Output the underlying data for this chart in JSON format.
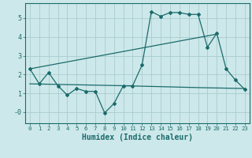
{
  "xlabel": "Humidex (Indice chaleur)",
  "bg_color": "#cde8ea",
  "line_color": "#1a6b6b",
  "grid_color": "#a8ccce",
  "xlim": [
    -0.5,
    23.5
  ],
  "ylim": [
    -0.6,
    5.8
  ],
  "xticks": [
    0,
    1,
    2,
    3,
    4,
    5,
    6,
    7,
    8,
    9,
    10,
    11,
    12,
    13,
    14,
    15,
    16,
    17,
    18,
    19,
    20,
    21,
    22,
    23
  ],
  "yticks": [
    0,
    1,
    2,
    3,
    4,
    5
  ],
  "ytick_labels": [
    "-0",
    "1",
    "2",
    "3",
    "4",
    "5"
  ],
  "line1_x": [
    0,
    1,
    2,
    3,
    4,
    5,
    6,
    7,
    8,
    9,
    10,
    11,
    12,
    13,
    14,
    15,
    16,
    17,
    18,
    19,
    20,
    21,
    22,
    23
  ],
  "line1_y": [
    2.3,
    1.5,
    2.1,
    1.4,
    0.9,
    1.25,
    1.1,
    1.1,
    -0.05,
    0.45,
    1.4,
    1.4,
    2.5,
    5.35,
    5.1,
    5.3,
    5.3,
    5.2,
    5.2,
    3.45,
    4.2,
    2.3,
    1.7,
    1.2
  ],
  "line2_x": [
    0,
    10,
    14,
    18,
    23
  ],
  "line2_y": [
    1.5,
    1.4,
    1.35,
    1.3,
    1.25
  ],
  "line3_x": [
    0,
    20
  ],
  "line3_y": [
    2.3,
    4.15
  ]
}
